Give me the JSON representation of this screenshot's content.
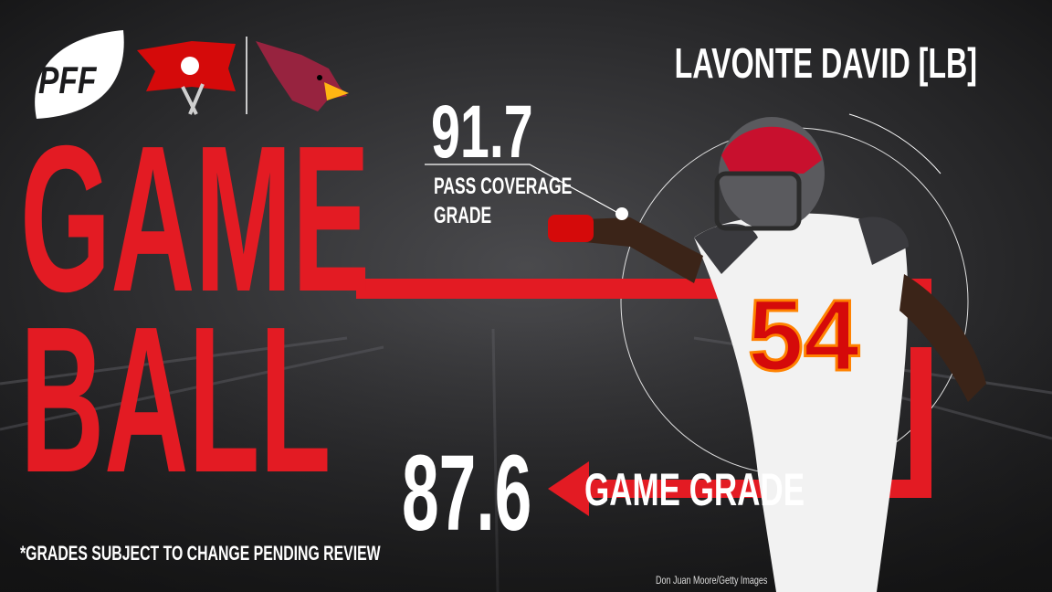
{
  "logo": {
    "text": "PFF"
  },
  "player": {
    "name": "LAVONTE DAVID [LB]"
  },
  "pass_coverage": {
    "grade": 91.7,
    "label_line1": "PASS COVERAGE",
    "label_line2": "GRADE"
  },
  "headline": {
    "line1": "GAME",
    "line2": "BALL"
  },
  "game_grade": {
    "grade": 87.6,
    "label": "GAME GRADE"
  },
  "footnote": "*GRADES SUBJECT TO CHANGE PENDING REVIEW",
  "credit": "Don Juan Moore/Getty Images"
}
